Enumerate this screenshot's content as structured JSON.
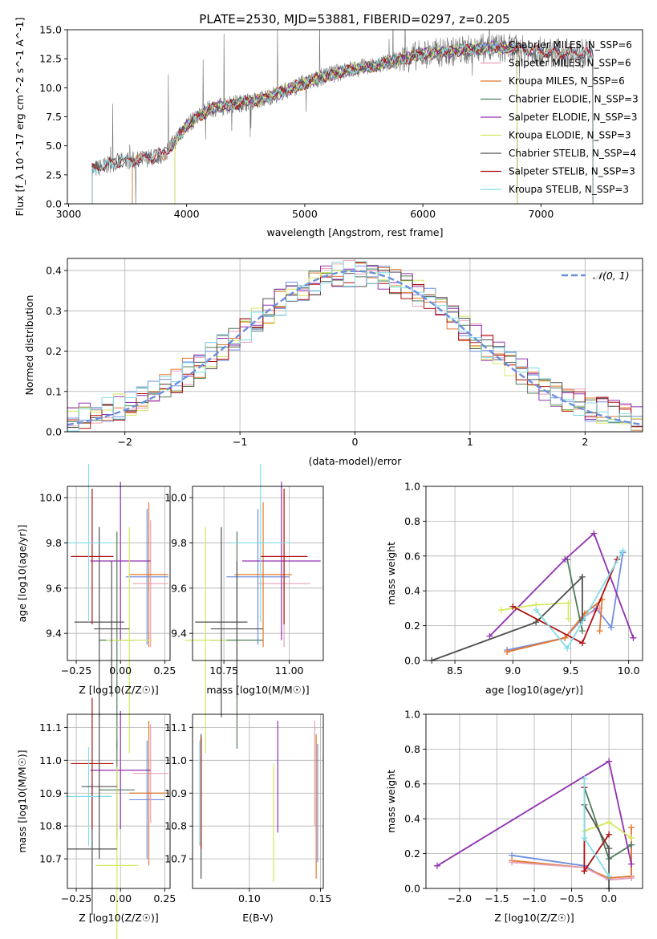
{
  "figure_title": "PLATE=2530, MJD=53881, FIBERID=0297, z=0.205",
  "colors": {
    "Chabrier MILES": "#6f8fe0",
    "Salpeter MILES": "#e8a0b8",
    "Kroupa MILES": "#e07830",
    "Chabrier ELODIE": "#4e7d5a",
    "Salpeter ELODIE": "#9030b0",
    "Kroupa ELODIE": "#d4e860",
    "Chabrier STELIB": "#505050",
    "Salpeter STELIB": "#b01010",
    "Kroupa STELIB": "#80dde8",
    "normal_curve": "#6a8fe0",
    "data_spectrum": "#707070"
  },
  "chart_data": [
    {
      "id": "spectrum",
      "type": "line",
      "title": "PLATE=2530, MJD=53881, FIBERID=0297, z=0.205",
      "xlabel": "wavelength [Angstrom, rest frame]",
      "ylabel": "Flux [f_λ 10^-17 erg cm^-2 s^-1 A^-1]",
      "xlim": [
        2990,
        7860
      ],
      "ylim": [
        0,
        15
      ],
      "xticks": [
        3000,
        4000,
        5000,
        6000,
        7000
      ],
      "yticks": [
        0.0,
        2.5,
        5.0,
        7.5,
        10.0,
        12.5,
        15.0
      ],
      "wavelength_range": [
        3200,
        7440
      ],
      "continuum_knots": {
        "x": [
          3200,
          3400,
          3600,
          3800,
          3900,
          4000,
          4200,
          4400,
          4600,
          4800,
          5000,
          5200,
          5400,
          5600,
          5800,
          6000,
          6200,
          6400,
          6600,
          6800,
          7000,
          7200,
          7440
        ],
        "y": [
          2.9,
          3.6,
          3.8,
          4.2,
          5.4,
          6.8,
          8.2,
          8.6,
          8.9,
          9.6,
          10.4,
          11.1,
          11.6,
          11.9,
          12.4,
          12.9,
          13.1,
          13.3,
          13.5,
          13.3,
          13.1,
          13.0,
          12.9
        ]
      },
      "legend": [
        "Chabrier MILES, N_SSP=6",
        "Salpeter MILES, N_SSP=6",
        "Kroupa MILES, N_SSP=6",
        "Chabrier ELODIE, N_SSP=3",
        "Salpeter ELODIE, N_SSP=3",
        "Kroupa ELODIE, N_SSP=3",
        "Chabrier STELIB, N_SSP=4",
        "Salpeter STELIB, N_SSP=3",
        "Kroupa STELIB, N_SSP=3"
      ],
      "legend_placement": "upper-right",
      "grid": false
    },
    {
      "id": "residuals",
      "type": "histogram",
      "xlabel": "(data-model)/error",
      "ylabel": "Normed distribution",
      "xlim": [
        -2.5,
        2.5
      ],
      "ylim": [
        0,
        0.43
      ],
      "xticks": [
        -2,
        -1,
        0,
        1,
        2
      ],
      "yticks": [
        0.0,
        0.1,
        0.2,
        0.3,
        0.4
      ],
      "bin_width": 0.1,
      "legend": [
        "𝒩(0, 1)"
      ],
      "legend_placement": "upper-right",
      "grid": true
    },
    {
      "id": "z_age",
      "type": "errorbar",
      "xlabel": "Z [log10(Z/Z☉)]",
      "ylabel": "age  [log10(age/yr)]",
      "xlim": [
        -0.3,
        0.28
      ],
      "ylim": [
        9.28,
        10.05
      ],
      "xticks": [
        -0.25,
        0.0,
        0.25
      ],
      "xticklabels": [
        "−0.25",
        "0.00",
        "0.25"
      ],
      "yticks": [
        9.4,
        9.6,
        9.8,
        10.0
      ],
      "grid": true,
      "points": [
        {
          "model": "Chabrier MILES",
          "x": 0.15,
          "xerr": 0.12,
          "y": 9.65,
          "yerr": 0.3
        },
        {
          "model": "Salpeter MILES",
          "x": 0.17,
          "xerr": 0.1,
          "y": 9.62,
          "yerr": 0.28
        },
        {
          "model": "Kroupa MILES",
          "x": 0.16,
          "xerr": 0.11,
          "y": 9.66,
          "yerr": 0.32
        },
        {
          "model": "Chabrier ELODIE",
          "x": -0.02,
          "xerr": 0.1,
          "y": 9.37,
          "yerr": 0.48
        },
        {
          "model": "Salpeter ELODIE",
          "x": 0.0,
          "xerr": 0.17,
          "y": 9.72,
          "yerr": 0.35
        },
        {
          "model": "Kroupa ELODIE",
          "x": 0.05,
          "xerr": 0.13,
          "y": 9.37,
          "yerr": 0.5
        },
        {
          "model": "Chabrier STELIB",
          "x": -0.12,
          "xerr": 0.14,
          "y": 9.45,
          "yerr": 0.42
        },
        {
          "model": "Salpeter STELIB",
          "x": -0.16,
          "xerr": 0.12,
          "y": 9.74,
          "yerr": 0.3
        },
        {
          "model": "Kroupa STELIB",
          "x": -0.18,
          "xerr": 0.14,
          "y": 9.8,
          "yerr": 0.35
        },
        {
          "model": "Chabrier STELIB",
          "x": -0.05,
          "xerr": 0.1,
          "y": 9.42,
          "yerr": 0.3
        }
      ]
    },
    {
      "id": "mass_age",
      "type": "errorbar",
      "xlabel": "mass [log10(M/M☉)]",
      "ylabel": "",
      "xlim": [
        10.63,
        11.13
      ],
      "ylim": [
        9.28,
        10.05
      ],
      "xticks": [
        10.75,
        11.0
      ],
      "yticks": [
        9.4,
        9.6,
        9.8,
        10.0
      ],
      "grid": true,
      "points": [
        {
          "model": "Chabrier MILES",
          "x": 10.88,
          "xerr": 0.12,
          "y": 9.65,
          "yerr": 0.3
        },
        {
          "model": "Salpeter MILES",
          "x": 10.98,
          "xerr": 0.1,
          "y": 9.62,
          "yerr": 0.28
        },
        {
          "model": "Kroupa MILES",
          "x": 10.9,
          "xerr": 0.11,
          "y": 9.66,
          "yerr": 0.32
        },
        {
          "model": "Chabrier ELODIE",
          "x": 10.8,
          "xerr": 0.1,
          "y": 9.37,
          "yerr": 0.48
        },
        {
          "model": "Salpeter ELODIE",
          "x": 10.97,
          "xerr": 0.15,
          "y": 9.72,
          "yerr": 0.35
        },
        {
          "model": "Kroupa ELODIE",
          "x": 10.68,
          "xerr": 0.08,
          "y": 9.37,
          "yerr": 0.5
        },
        {
          "model": "Chabrier STELIB",
          "x": 10.74,
          "xerr": 0.1,
          "y": 9.45,
          "yerr": 0.42
        },
        {
          "model": "Salpeter STELIB",
          "x": 10.98,
          "xerr": 0.09,
          "y": 9.74,
          "yerr": 0.3
        },
        {
          "model": "Kroupa STELIB",
          "x": 10.89,
          "xerr": 0.12,
          "y": 9.8,
          "yerr": 0.35
        },
        {
          "model": "Chabrier STELIB",
          "x": 10.8,
          "xerr": 0.1,
          "y": 9.42,
          "yerr": 0.3
        }
      ]
    },
    {
      "id": "age_weight",
      "type": "line",
      "xlabel": "age  [log10(age/yr)]",
      "ylabel": "mass weight",
      "xlim": [
        8.25,
        10.12
      ],
      "ylim": [
        0,
        1.0
      ],
      "xticks": [
        8.5,
        9.0,
        9.5,
        10.0
      ],
      "yticks": [
        0.0,
        0.2,
        0.4,
        0.6,
        0.8,
        1.0
      ],
      "grid": true,
      "series": [
        {
          "model": "Chabrier MILES",
          "x": [
            8.95,
            9.45,
            9.6,
            9.72,
            9.85,
            9.95
          ],
          "y": [
            0.06,
            0.13,
            0.24,
            0.3,
            0.19,
            0.62
          ]
        },
        {
          "model": "Salpeter MILES",
          "x": [
            8.95,
            9.45,
            9.6,
            9.75
          ],
          "y": [
            0.05,
            0.13,
            0.25,
            0.3
          ]
        },
        {
          "model": "Kroupa MILES",
          "x": [
            8.95,
            9.45,
            9.62,
            9.77,
            9.75
          ],
          "y": [
            0.05,
            0.13,
            0.27,
            0.35,
            0.17
          ]
        },
        {
          "model": "Chabrier ELODIE",
          "x": [
            9.47,
            9.6
          ],
          "y": [
            0.58,
            0.17
          ]
        },
        {
          "model": "Salpeter ELODIE",
          "x": [
            8.8,
            9.45,
            9.7,
            10.04
          ],
          "y": [
            0.14,
            0.58,
            0.73,
            0.13
          ]
        },
        {
          "model": "Kroupa ELODIE",
          "x": [
            8.9,
            9.2,
            9.48,
            9.48
          ],
          "y": [
            0.29,
            0.32,
            0.33,
            0.24
          ]
        },
        {
          "model": "Chabrier STELIB",
          "x": [
            8.3,
            9.2,
            9.6,
            9.6
          ],
          "y": [
            0.0,
            0.22,
            0.48,
            0.23
          ]
        },
        {
          "model": "Salpeter STELIB",
          "x": [
            9.0,
            9.6,
            9.9
          ],
          "y": [
            0.31,
            0.1,
            0.58
          ]
        },
        {
          "model": "Kroupa STELIB",
          "x": [
            9.2,
            9.47,
            9.95
          ],
          "y": [
            0.29,
            0.07,
            0.63
          ]
        }
      ]
    },
    {
      "id": "z_mass",
      "type": "errorbar",
      "xlabel": "Z [log10(Z/Z☉)]",
      "ylabel": "mass [log10(M/M☉)]",
      "xlim": [
        -0.3,
        0.28
      ],
      "ylim": [
        10.61,
        11.14
      ],
      "xticks": [
        -0.25,
        0.0,
        0.25
      ],
      "xticklabels": [
        "−0.25",
        "0.00",
        "0.25"
      ],
      "yticks": [
        10.7,
        10.8,
        10.9,
        11.0,
        11.1
      ],
      "grid": true,
      "points": [
        {
          "model": "Chabrier MILES",
          "x": 0.15,
          "xerr": 0.1,
          "y": 10.88,
          "yerr": 0.18
        },
        {
          "model": "Salpeter MILES",
          "x": 0.17,
          "xerr": 0.1,
          "y": 10.96,
          "yerr": 0.15
        },
        {
          "model": "Kroupa MILES",
          "x": 0.16,
          "xerr": 0.11,
          "y": 10.9,
          "yerr": 0.22
        },
        {
          "model": "Chabrier ELODIE",
          "x": -0.02,
          "xerr": 0.1,
          "y": 10.91,
          "yerr": 0.15
        },
        {
          "model": "Salpeter ELODIE",
          "x": 0.0,
          "xerr": 0.17,
          "y": 10.97,
          "yerr": 0.18
        },
        {
          "model": "Kroupa ELODIE",
          "x": -0.02,
          "xerr": 0.12,
          "y": 10.68,
          "yerr": 0.3
        },
        {
          "model": "Chabrier STELIB",
          "x": -0.16,
          "xerr": 0.14,
          "y": 10.73,
          "yerr": 0.2
        },
        {
          "model": "Salpeter STELIB",
          "x": -0.16,
          "xerr": 0.12,
          "y": 10.99,
          "yerr": 0.2
        },
        {
          "model": "Kroupa STELIB",
          "x": -0.18,
          "xerr": 0.13,
          "y": 10.89,
          "yerr": 0.15
        },
        {
          "model": "Chabrier STELIB",
          "x": -0.12,
          "xerr": 0.1,
          "y": 10.92,
          "yerr": 0.22
        }
      ]
    },
    {
      "id": "ebv_mass",
      "type": "errorbar",
      "xlabel": "E(B-V)",
      "ylabel": "",
      "xlim": [
        0.06,
        0.152
      ],
      "ylim": [
        10.61,
        11.14
      ],
      "xticks": [
        0.1,
        0.15
      ],
      "xticklabels": [
        "0.10",
        "0.15"
      ],
      "yticks": [
        10.7,
        10.8,
        10.9,
        11.0,
        11.1
      ],
      "grid": true,
      "points": [
        {
          "model": "Kroupa STELIB",
          "x": 0.065,
          "y": 10.9,
          "yerr": 0.16
        },
        {
          "model": "Chabrier STELIB",
          "x": 0.066,
          "y": 10.86,
          "yerr": 0.22
        },
        {
          "model": "Salpeter STELIB",
          "x": 0.066,
          "y": 10.9,
          "yerr": 0.17
        },
        {
          "model": "Kroupa ELODIE",
          "x": 0.117,
          "y": 10.81,
          "yerr": 0.18
        },
        {
          "model": "Salpeter ELODIE",
          "x": 0.12,
          "y": 10.95,
          "yerr": 0.17
        },
        {
          "model": "Salpeter MILES",
          "x": 0.146,
          "y": 10.96,
          "yerr": 0.16
        },
        {
          "model": "Kroupa MILES",
          "x": 0.147,
          "y": 10.86,
          "yerr": 0.22
        },
        {
          "model": "Chabrier MILES",
          "x": 0.148,
          "y": 10.87,
          "yerr": 0.18
        }
      ]
    },
    {
      "id": "z_weight",
      "type": "line",
      "xlabel": "Z [log10(Z/Z☉)]",
      "ylabel": "mass weight",
      "xlim": [
        -2.45,
        0.45
      ],
      "ylim": [
        0,
        1.0
      ],
      "xticks": [
        -2.0,
        -1.5,
        -1.0,
        -0.5,
        0.0
      ],
      "xticklabels": [
        "−2.0",
        "−1.5",
        "−1.0",
        "−0.5",
        "0.0"
      ],
      "yticks": [
        0.0,
        0.2,
        0.4,
        0.6,
        0.8,
        1.0
      ],
      "grid": true,
      "series": [
        {
          "model": "Chabrier MILES",
          "x": [
            -1.3,
            -0.33,
            0.0,
            0.3,
            0.3
          ],
          "y": [
            0.19,
            0.13,
            0.05,
            0.06,
            0.25
          ]
        },
        {
          "model": "Kroupa MILES",
          "x": [
            -1.3,
            -0.33,
            0.0,
            0.3,
            0.3
          ],
          "y": [
            0.16,
            0.12,
            0.06,
            0.07,
            0.35
          ]
        },
        {
          "model": "Salpeter MILES",
          "x": [
            -1.3,
            -0.33,
            0.0,
            0.3
          ],
          "y": [
            0.15,
            0.12,
            0.05,
            0.06
          ]
        },
        {
          "model": "Chabrier ELODIE",
          "x": [
            -0.33,
            0.0,
            0.3
          ],
          "y": [
            0.58,
            0.17,
            0.25
          ]
        },
        {
          "model": "Salpeter ELODIE",
          "x": [
            -2.3,
            0.0,
            0.3
          ],
          "y": [
            0.13,
            0.73,
            0.14
          ]
        },
        {
          "model": "Kroupa ELODIE",
          "x": [
            -0.33,
            0.0,
            0.3
          ],
          "y": [
            0.33,
            0.38,
            0.29
          ]
        },
        {
          "model": "Chabrier STELIB",
          "x": [
            -0.33,
            0.0,
            0.0
          ],
          "y": [
            0.48,
            0.23,
            0.0
          ]
        },
        {
          "model": "Salpeter STELIB",
          "x": [
            -0.33,
            -0.33,
            0.0
          ],
          "y": [
            0.58,
            0.1,
            0.31
          ]
        },
        {
          "model": "Kroupa STELIB",
          "x": [
            -0.33,
            -0.33,
            0.0
          ],
          "y": [
            0.63,
            0.29,
            0.07
          ]
        }
      ]
    }
  ]
}
